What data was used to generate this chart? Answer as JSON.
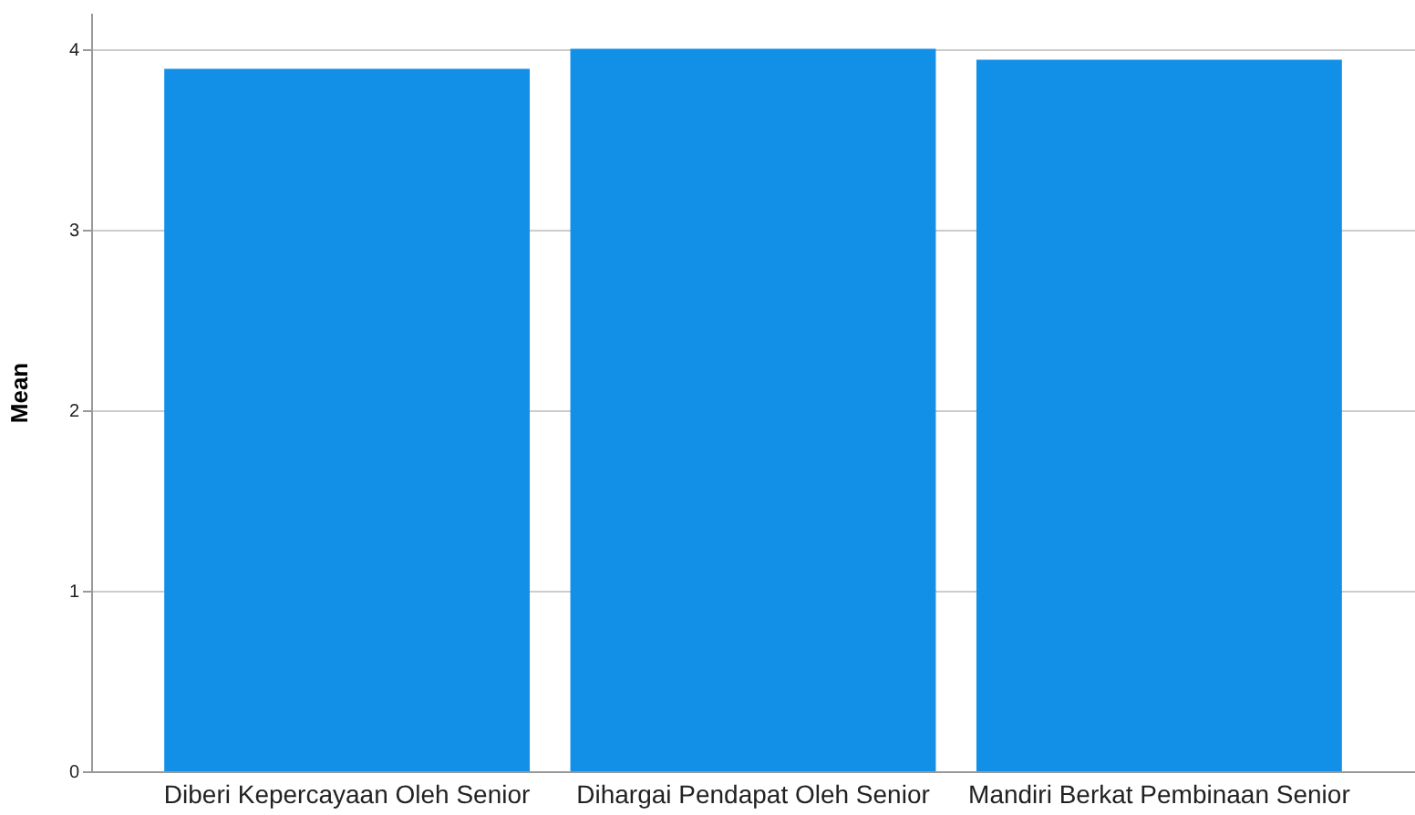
{
  "chart_data": {
    "type": "bar",
    "ylabel": "Mean",
    "categories": [
      "Diberi Kepercayaan Oleh Senior",
      "Dihargai Pendapat Oleh Senior",
      "Mandiri Berkat Pembinaan Senior"
    ],
    "values": [
      3.89,
      4.0,
      3.94
    ],
    "color": "#1290e8",
    "ylim": [
      0,
      4.2
    ],
    "yticks": [
      0,
      1,
      2,
      3,
      4
    ],
    "grid": "y"
  }
}
